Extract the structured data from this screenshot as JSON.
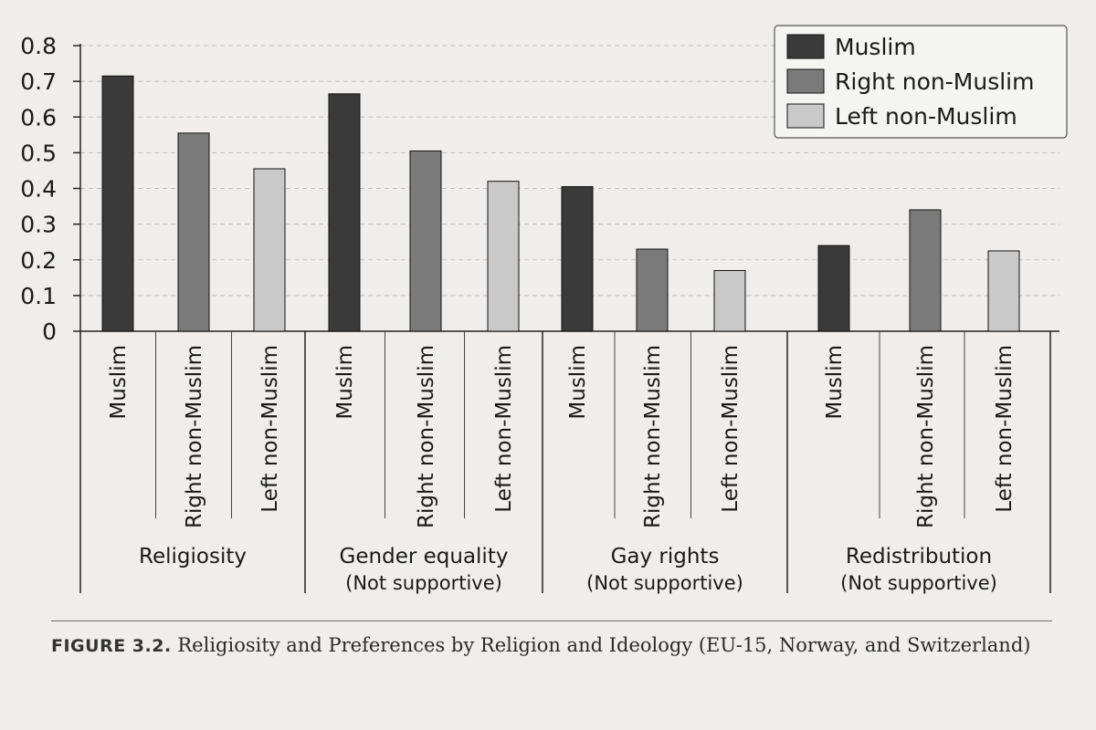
{
  "chart_data": {
    "type": "bar",
    "title": "",
    "xlabel": "",
    "ylabel": "",
    "ylim": [
      0,
      0.8
    ],
    "yticks": [
      "0",
      "0.1",
      "0.2",
      "0.3",
      "0.4",
      "0.5",
      "0.6",
      "0.7",
      "0.8"
    ],
    "grid": "horizontal dashed",
    "legend_position": "top-right",
    "series": [
      {
        "name": "Muslim",
        "color": "#3a3a3a"
      },
      {
        "name": "Right non-Muslim",
        "color": "#7a7a7a"
      },
      {
        "name": "Left non-Muslim",
        "color": "#c9c9c9"
      }
    ],
    "groups": [
      {
        "label": "Religiosity",
        "sublabel": "",
        "bars": [
          {
            "category": "Muslim",
            "value": 0.715
          },
          {
            "category": "Right non-Muslim",
            "value": 0.555
          },
          {
            "category": "Left non-Muslim",
            "value": 0.455
          }
        ]
      },
      {
        "label": "Gender equality",
        "sublabel": "(Not supportive)",
        "bars": [
          {
            "category": "Muslim",
            "value": 0.665
          },
          {
            "category": "Right non-Muslim",
            "value": 0.505
          },
          {
            "category": "Left non-Muslim",
            "value": 0.42
          }
        ]
      },
      {
        "label": "Gay rights",
        "sublabel": "(Not supportive)",
        "bars": [
          {
            "category": "Muslim",
            "value": 0.405
          },
          {
            "category": "Right non-Muslim",
            "value": 0.23
          },
          {
            "category": "Left non-Muslim",
            "value": 0.17
          }
        ]
      },
      {
        "label": "Redistribution",
        "sublabel": "(Not supportive)",
        "bars": [
          {
            "category": "Muslim",
            "value": 0.24
          },
          {
            "category": "Right non-Muslim",
            "value": 0.34
          },
          {
            "category": "Left non-Muslim",
            "value": 0.225
          }
        ]
      }
    ]
  },
  "caption": {
    "figure_number": "FIGURE 3.2.",
    "text": "Religiosity and Preferences by Religion and Ideology (EU-15, Norway, and Switzerland)"
  }
}
